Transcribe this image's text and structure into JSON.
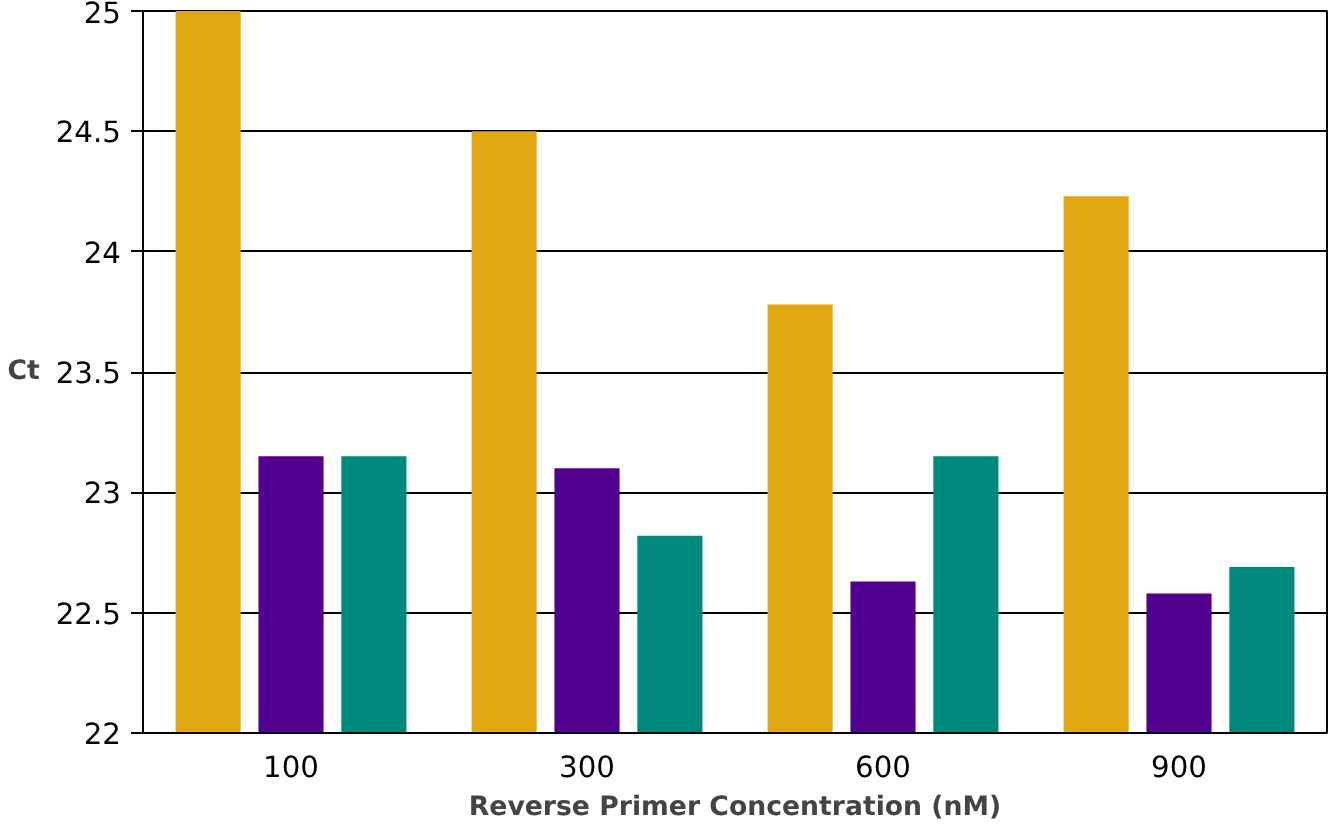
{
  "chart_data": {
    "type": "bar",
    "xlabel": "Reverse Primer Concentration (nM)",
    "ylabel": "Ct",
    "categories": [
      "100",
      "300",
      "600",
      "900"
    ],
    "series": [
      {
        "color": "#e2a812",
        "values": [
          25.0,
          24.5,
          23.78,
          24.23
        ]
      },
      {
        "color": "#52008f",
        "values": [
          23.15,
          23.1,
          22.63,
          22.58
        ]
      },
      {
        "color": "#008a7e",
        "values": [
          23.15,
          22.82,
          23.15,
          22.69
        ]
      }
    ],
    "ylim": [
      22,
      25
    ],
    "yticks": [
      22,
      22.5,
      23,
      23.5,
      24,
      24.5,
      25
    ],
    "grid": "y"
  }
}
